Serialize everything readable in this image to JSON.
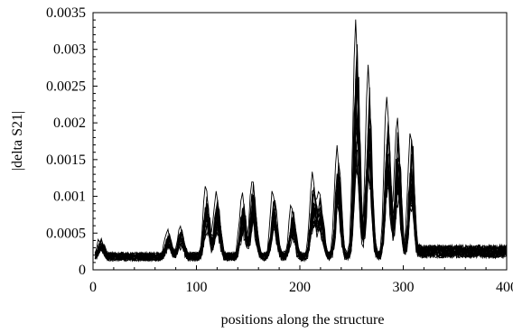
{
  "chart_data": {
    "type": "line",
    "title": "",
    "xlabel": "positions along the structure",
    "ylabel": "|delta S21|",
    "xlim": [
      0,
      400
    ],
    "ylim": [
      0,
      0.0035
    ],
    "xticks": [
      0,
      100,
      200,
      300,
      400
    ],
    "xtick_labels": [
      "0",
      "100",
      "200",
      "300",
      "400"
    ],
    "yticks": [
      0,
      0.0005,
      0.001,
      0.0015,
      0.002,
      0.0025,
      0.003,
      0.0035
    ],
    "ytick_labels": [
      "0",
      "0.0005",
      "0.001",
      "0.0015",
      "0.002",
      "0.0025",
      "0.003",
      "0.0035"
    ],
    "grid": false,
    "legend": false,
    "line_color": "#000000",
    "series_count": 20,
    "baseline": 0.0002,
    "peaks": [
      {
        "x": 8,
        "y": 0.00045
      },
      {
        "x": 73,
        "y": 0.00055
      },
      {
        "x": 85,
        "y": 0.0006
      },
      {
        "x": 110,
        "y": 0.00115
      },
      {
        "x": 120,
        "y": 0.00105
      },
      {
        "x": 145,
        "y": 0.00105
      },
      {
        "x": 155,
        "y": 0.00125
      },
      {
        "x": 175,
        "y": 0.0011
      },
      {
        "x": 193,
        "y": 0.0009
      },
      {
        "x": 213,
        "y": 0.00128
      },
      {
        "x": 220,
        "y": 0.00105
      },
      {
        "x": 237,
        "y": 0.0017
      },
      {
        "x": 255,
        "y": 0.00342
      },
      {
        "x": 267,
        "y": 0.0028
      },
      {
        "x": 285,
        "y": 0.0024
      },
      {
        "x": 295,
        "y": 0.0021
      },
      {
        "x": 308,
        "y": 0.0019
      }
    ]
  }
}
